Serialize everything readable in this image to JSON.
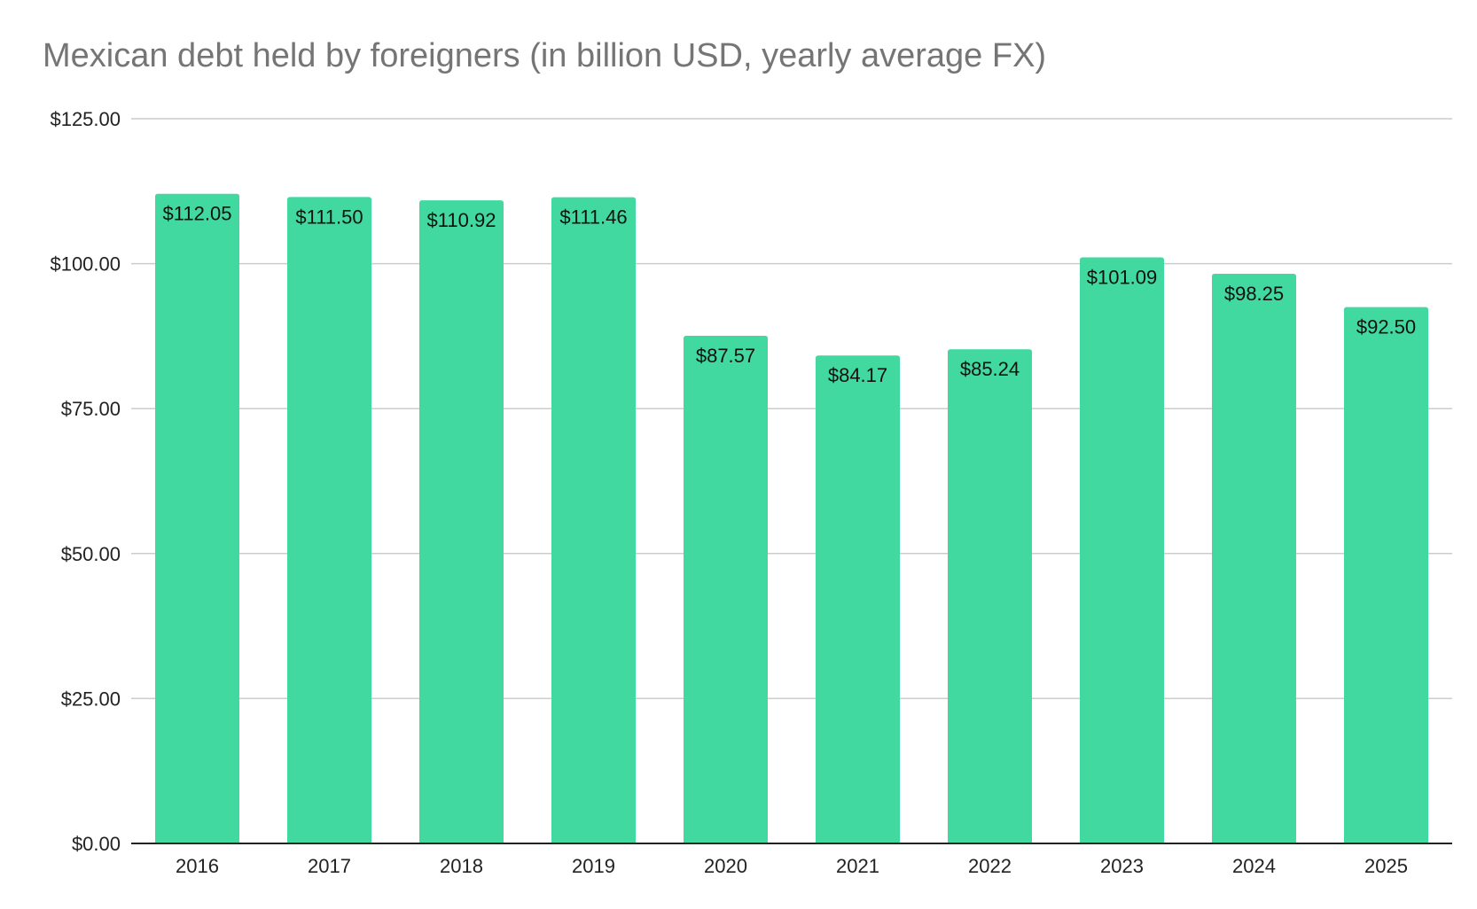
{
  "chart_data": {
    "type": "bar",
    "title": "Mexican debt held by foreigners (in billion USD, yearly average FX)",
    "xlabel": "",
    "ylabel": "",
    "categories": [
      "2016",
      "2017",
      "2018",
      "2019",
      "2020",
      "2021",
      "2022",
      "2023",
      "2024",
      "2025"
    ],
    "values": [
      112.05,
      111.5,
      110.92,
      111.46,
      87.57,
      84.17,
      85.24,
      101.09,
      98.25,
      92.5
    ],
    "data_labels": [
      "$112.05",
      "$111.50",
      "$110.92",
      "$111.46",
      "$87.57",
      "$84.17",
      "$85.24",
      "$101.09",
      "$98.25",
      "$92.50"
    ],
    "ylim": [
      0,
      125
    ],
    "yticks": [
      0,
      25,
      50,
      75,
      100,
      125
    ],
    "ytick_labels": [
      "$0.00",
      "$25.00",
      "$50.00",
      "$75.00",
      "$100.00",
      "$125.00"
    ],
    "grid": true,
    "legend": "none",
    "bar_color": "#41d9a0",
    "grid_color": "#cccccc",
    "axis_color": "#222222"
  }
}
